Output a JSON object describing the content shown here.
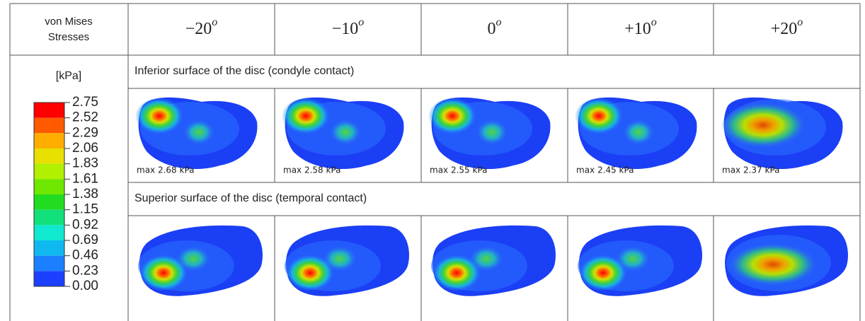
{
  "header": {
    "corner": [
      "von Mises",
      "Stresses"
    ],
    "angles": [
      {
        "base": "−20",
        "sup": "o"
      },
      {
        "base": "−10",
        "sup": "o"
      },
      {
        "base": "0",
        "sup": "o"
      },
      {
        "base": "+10",
        "sup": "o"
      },
      {
        "base": "+20",
        "sup": "o"
      }
    ]
  },
  "legend": {
    "unit": "[kPa]",
    "values": [
      "2.75",
      "2.52",
      "2.29",
      "2.06",
      "1.83",
      "1.61",
      "1.38",
      "1.15",
      "0.92",
      "0.69",
      "0.46",
      "0.23",
      "0.00"
    ]
  },
  "sections": [
    {
      "title": "Inferior surface of the disc (condyle contact)",
      "max_labels": [
        "max 2.68 kPa",
        "max 2.58 kPa",
        "max 2.55 kPa",
        "max 2.45 kPa",
        "max 2.37 kPa"
      ]
    },
    {
      "title": "Superior surface of the disc (temporal contact)"
    }
  ]
}
